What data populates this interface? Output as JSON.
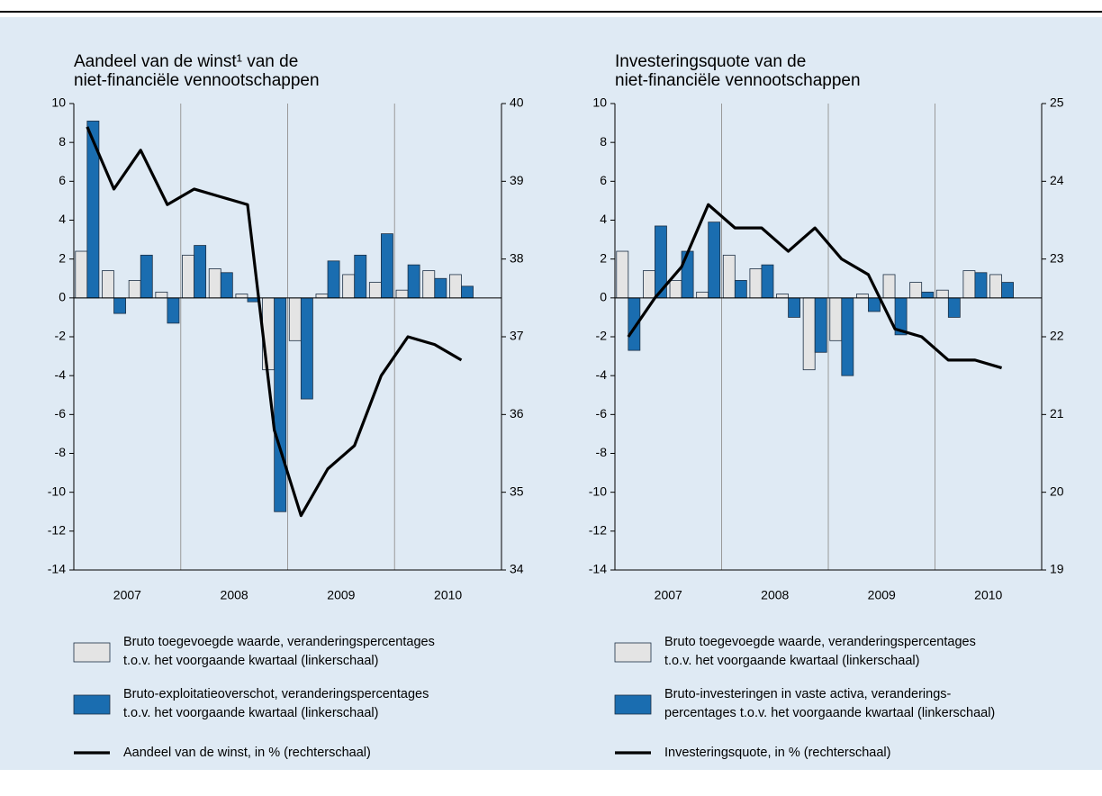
{
  "chart_data": [
    {
      "type": "combo",
      "title": "Aandeel van de winst¹ van de\nniet-financiële vennootschappen",
      "x": [
        2007.125,
        2007.375,
        2007.625,
        2007.875,
        2008.125,
        2008.375,
        2008.625,
        2008.875,
        2009.125,
        2009.375,
        2009.625,
        2009.875,
        2010.125,
        2010.375,
        2010.625
      ],
      "xlim": [
        2007,
        2011
      ],
      "xticks": [
        {
          "value": 2007.5,
          "label": "2007"
        },
        {
          "value": 2008.5,
          "label": "2008"
        },
        {
          "value": 2009.5,
          "label": "2009"
        },
        {
          "value": 2010.5,
          "label": "2010"
        }
      ],
      "grid_x": [
        2008,
        2009,
        2010
      ],
      "ylim": [
        -14,
        10
      ],
      "yticks": [
        -14,
        -12,
        -10,
        -8,
        -6,
        -4,
        -2,
        0,
        2,
        4,
        6,
        8,
        10
      ],
      "y2lim": [
        34,
        40
      ],
      "y2ticks": [
        34,
        35,
        36,
        37,
        38,
        39,
        40
      ],
      "series": [
        {
          "name": "Bruto toegevoegde waarde, veranderingspercentages\nt.o.v. het voorgaande kwartaal (linkerschaal)",
          "type": "bar",
          "color": "#e4e4e4",
          "values": [
            2.4,
            1.4,
            0.9,
            0.3,
            2.2,
            1.5,
            0.2,
            -3.7,
            -2.2,
            0.2,
            1.2,
            0.8,
            0.4,
            1.4,
            1.2
          ]
        },
        {
          "name": "Bruto-exploitatieoverschot, veranderingspercentages\nt.o.v. het voorgaande kwartaal (linkerschaal)",
          "type": "bar",
          "color": "#1a6db0",
          "values": [
            9.1,
            -0.8,
            2.2,
            -1.3,
            2.7,
            1.3,
            -0.2,
            -11.0,
            -5.2,
            1.9,
            2.2,
            3.3,
            1.7,
            1.0,
            0.6
          ]
        },
        {
          "name": "Aandeel van de winst, in % (rechterschaal)",
          "type": "line",
          "axis": "y2",
          "color": "#000000",
          "values": [
            39.7,
            38.9,
            39.4,
            38.7,
            38.9,
            38.8,
            38.7,
            35.8,
            34.7,
            35.3,
            35.6,
            36.5,
            37.0,
            36.9,
            36.7
          ]
        }
      ]
    },
    {
      "type": "combo",
      "title": "Investeringsquote van de\nniet-financiële vennootschappen",
      "x": [
        2007.125,
        2007.375,
        2007.625,
        2007.875,
        2008.125,
        2008.375,
        2008.625,
        2008.875,
        2009.125,
        2009.375,
        2009.625,
        2009.875,
        2010.125,
        2010.375,
        2010.625
      ],
      "xlim": [
        2007,
        2011
      ],
      "xticks": [
        {
          "value": 2007.5,
          "label": "2007"
        },
        {
          "value": 2008.5,
          "label": "2008"
        },
        {
          "value": 2009.5,
          "label": "2009"
        },
        {
          "value": 2010.5,
          "label": "2010"
        }
      ],
      "grid_x": [
        2008,
        2009,
        2010
      ],
      "ylim": [
        -14,
        10
      ],
      "yticks": [
        -14,
        -12,
        -10,
        -8,
        -6,
        -4,
        -2,
        0,
        2,
        4,
        6,
        8,
        10
      ],
      "y2lim": [
        19,
        25
      ],
      "y2ticks": [
        19,
        20,
        21,
        22,
        23,
        24,
        25
      ],
      "series": [
        {
          "name": "Bruto toegevoegde waarde, veranderingspercentages\nt.o.v. het voorgaande kwartaal (linkerschaal)",
          "type": "bar",
          "color": "#e4e4e4",
          "values": [
            2.4,
            1.4,
            0.9,
            0.3,
            2.2,
            1.5,
            0.2,
            -3.7,
            -2.2,
            0.2,
            1.2,
            0.8,
            0.4,
            1.4,
            1.2
          ]
        },
        {
          "name": "Bruto-investeringen in vaste activa, veranderings-\npercentages t.o.v. het voorgaande kwartaal (linkerschaal)",
          "type": "bar",
          "color": "#1a6db0",
          "values": [
            -2.7,
            3.7,
            2.4,
            3.9,
            0.9,
            1.7,
            -1.0,
            -2.8,
            -4.0,
            -0.7,
            -1.9,
            0.3,
            -1.0,
            1.3,
            0.8
          ]
        },
        {
          "name": "Investeringsquote, in % (rechterschaal)",
          "type": "line",
          "axis": "y2",
          "color": "#000000",
          "values": [
            22.0,
            22.5,
            22.9,
            23.7,
            23.4,
            23.4,
            23.1,
            23.4,
            23.0,
            22.8,
            22.1,
            22.0,
            21.7,
            21.7,
            21.6
          ]
        }
      ]
    }
  ]
}
